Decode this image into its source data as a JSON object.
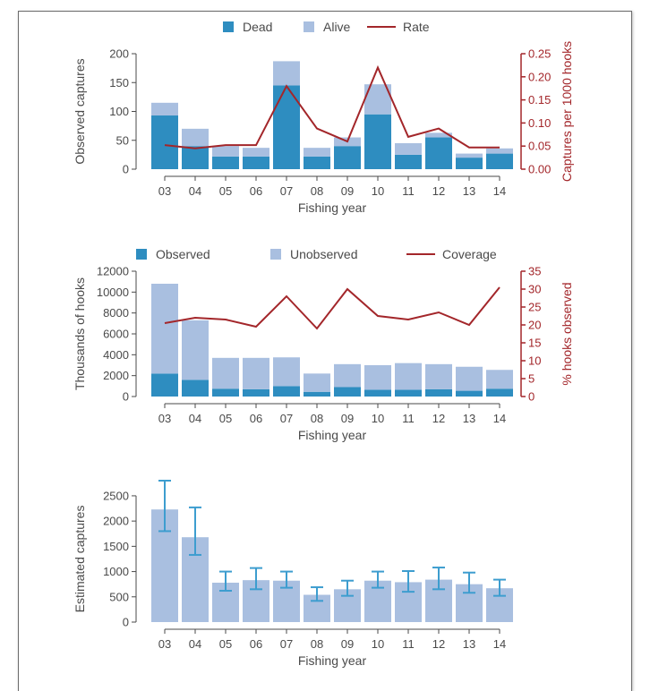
{
  "colors": {
    "dark_blue": "#2e8dc0",
    "light_blue": "#a9bfe0",
    "red_line": "#a3262a",
    "axis_gray": "#4a4a4a",
    "error_bar": "#3d9dcf"
  },
  "chart_data": [
    {
      "type": "bar",
      "stacked": true,
      "categories": [
        "03",
        "04",
        "05",
        "06",
        "07",
        "08",
        "09",
        "10",
        "11",
        "12",
        "13",
        "14"
      ],
      "series": [
        {
          "name": "Dead",
          "values": [
            93,
            40,
            22,
            22,
            145,
            22,
            40,
            95,
            25,
            55,
            20,
            27
          ]
        },
        {
          "name": "Alive",
          "values": [
            22,
            30,
            18,
            15,
            42,
            15,
            15,
            52,
            20,
            8,
            7,
            9
          ]
        },
        {
          "name": "Rate",
          "type": "line",
          "axis": "right",
          "values": [
            0.052,
            0.045,
            0.052,
            0.052,
            0.18,
            0.088,
            0.06,
            0.22,
            0.07,
            0.088,
            0.047,
            0.047
          ]
        }
      ],
      "xlabel": "Fishing year",
      "ylabel": "Observed captures",
      "ylabel_right": "Captures per 1000 hooks",
      "ylim": [
        0,
        200
      ],
      "yticks": [
        0,
        50,
        100,
        150,
        200
      ],
      "ylim_right": [
        0,
        0.25
      ],
      "yticks_right": [
        "0.00",
        "0.05",
        "0.10",
        "0.15",
        "0.20",
        "0.25"
      ],
      "legend": [
        "Dead",
        "Alive",
        "Rate"
      ],
      "legend_position": "top-center",
      "grid": false
    },
    {
      "type": "bar",
      "stacked": true,
      "categories": [
        "03",
        "04",
        "05",
        "06",
        "07",
        "08",
        "09",
        "10",
        "11",
        "12",
        "13",
        "14"
      ],
      "series": [
        {
          "name": "Observed",
          "values": [
            2200,
            1600,
            750,
            700,
            1000,
            450,
            900,
            650,
            650,
            700,
            550,
            750
          ]
        },
        {
          "name": "Unobserved",
          "values": [
            8600,
            5700,
            2950,
            3000,
            2750,
            1750,
            2200,
            2350,
            2550,
            2400,
            2300,
            1800
          ]
        },
        {
          "name": "Coverage",
          "type": "line",
          "axis": "right",
          "values": [
            20.5,
            22,
            21.5,
            19.5,
            28,
            19,
            30,
            22.5,
            21.5,
            23.5,
            20,
            30.5
          ]
        }
      ],
      "xlabel": "Fishing year",
      "ylabel": "Thousands of hooks",
      "ylabel_right": "% hooks observed",
      "ylim": [
        0,
        12000
      ],
      "yticks": [
        0,
        2000,
        4000,
        6000,
        8000,
        10000,
        12000
      ],
      "ylim_right": [
        0,
        35
      ],
      "yticks_right": [
        "0",
        "5",
        "10",
        "15",
        "20",
        "25",
        "30",
        "35"
      ],
      "legend": [
        "Observed",
        "Unobserved",
        "Coverage"
      ],
      "legend_position": "top-center",
      "grid": false
    },
    {
      "type": "bar",
      "error_bars": true,
      "categories": [
        "03",
        "04",
        "05",
        "06",
        "07",
        "08",
        "09",
        "10",
        "11",
        "12",
        "13",
        "14"
      ],
      "series": [
        {
          "values": [
            2230,
            1680,
            780,
            830,
            820,
            540,
            650,
            820,
            790,
            840,
            750,
            670
          ],
          "lower": [
            1800,
            1330,
            620,
            650,
            680,
            420,
            520,
            680,
            600,
            650,
            580,
            520
          ],
          "upper": [
            2800,
            2270,
            1000,
            1070,
            1000,
            690,
            820,
            1000,
            1010,
            1080,
            980,
            840
          ]
        }
      ],
      "xlabel": "Fishing year",
      "ylabel": "Estimated captures",
      "ylim": [
        0,
        2800
      ],
      "yticks": [
        0,
        500,
        1000,
        1500,
        2000,
        2500
      ],
      "grid": false
    }
  ]
}
